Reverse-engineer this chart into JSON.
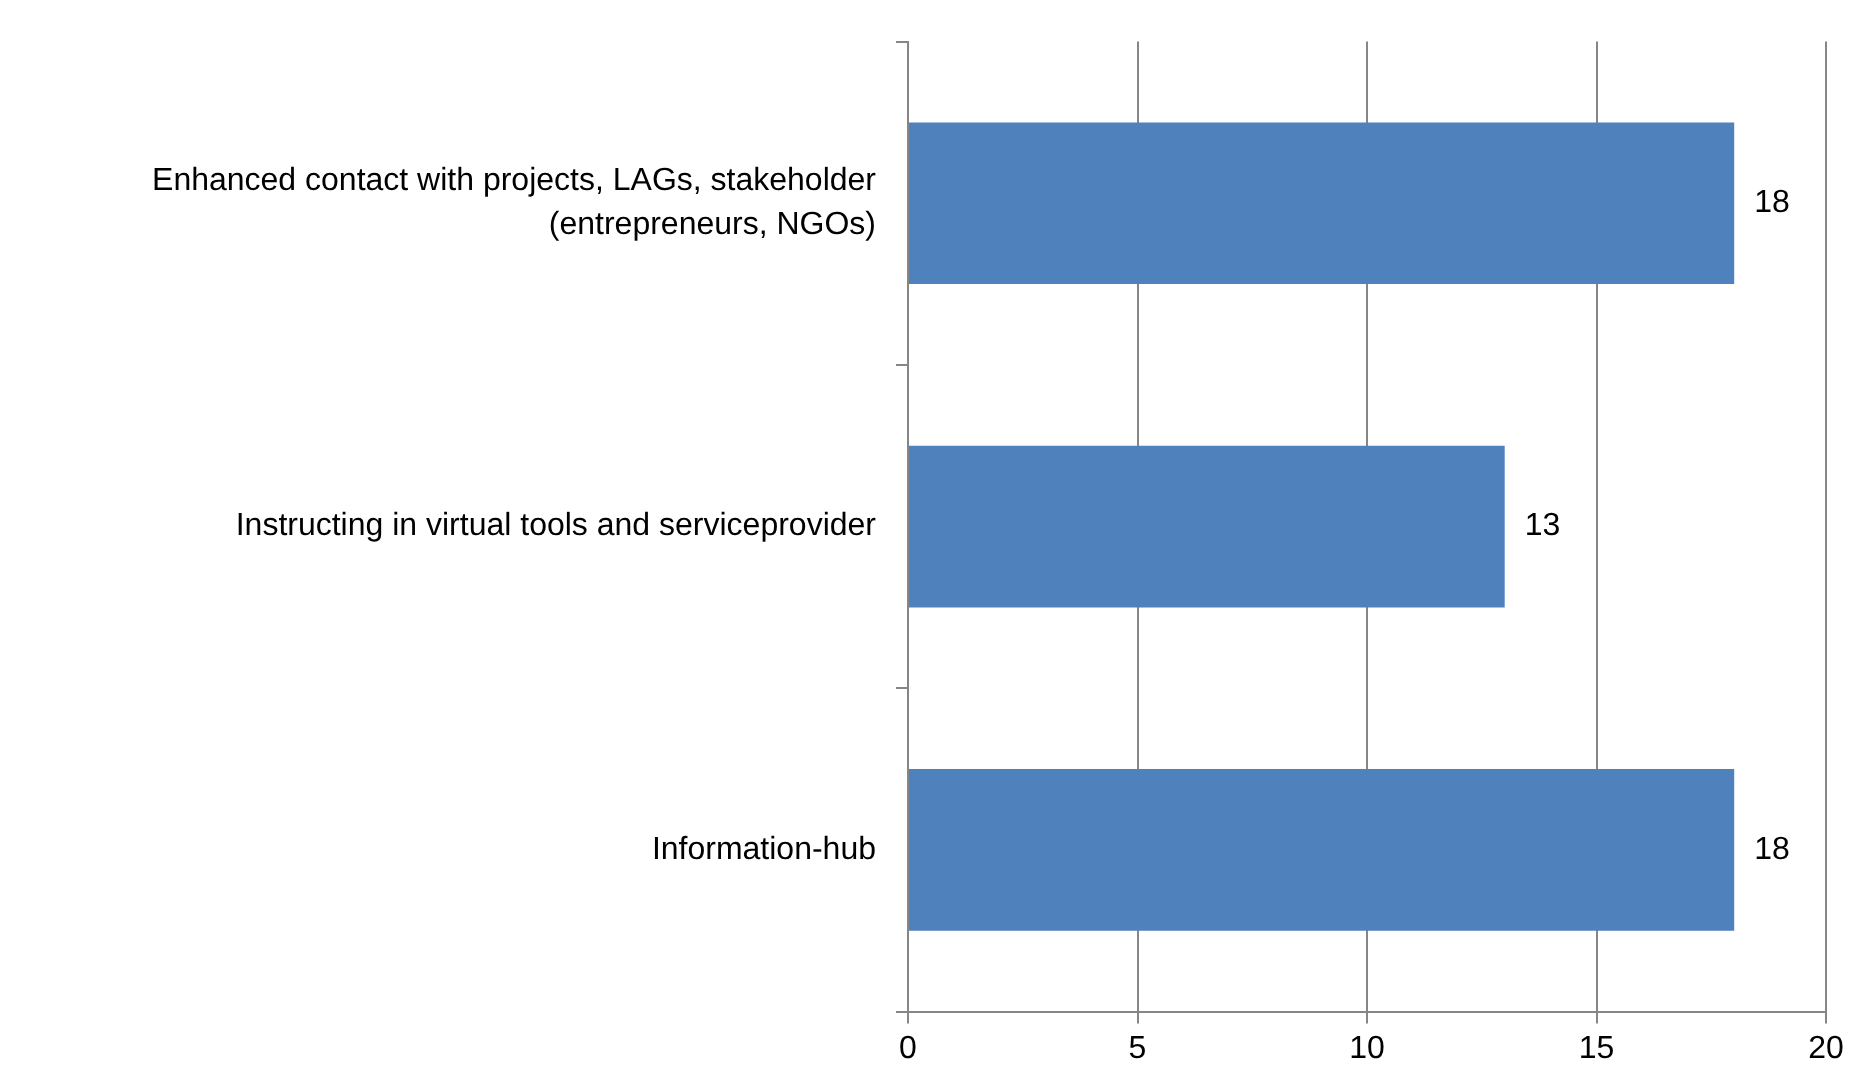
{
  "chart_data": {
    "type": "bar",
    "orientation": "horizontal",
    "categories": [
      "Enhanced contact with projects, LAGs, stakeholder (entrepreneurs, NGOs)",
      "Instructing in virtual tools and serviceprovider",
      "Information-hub"
    ],
    "values": [
      18,
      13,
      18
    ],
    "color": "#4f81bd",
    "xlim": [
      0,
      20
    ],
    "xticks": [
      0,
      5,
      10,
      15,
      20
    ],
    "grid": "x",
    "data_labels": true,
    "legend": false
  }
}
